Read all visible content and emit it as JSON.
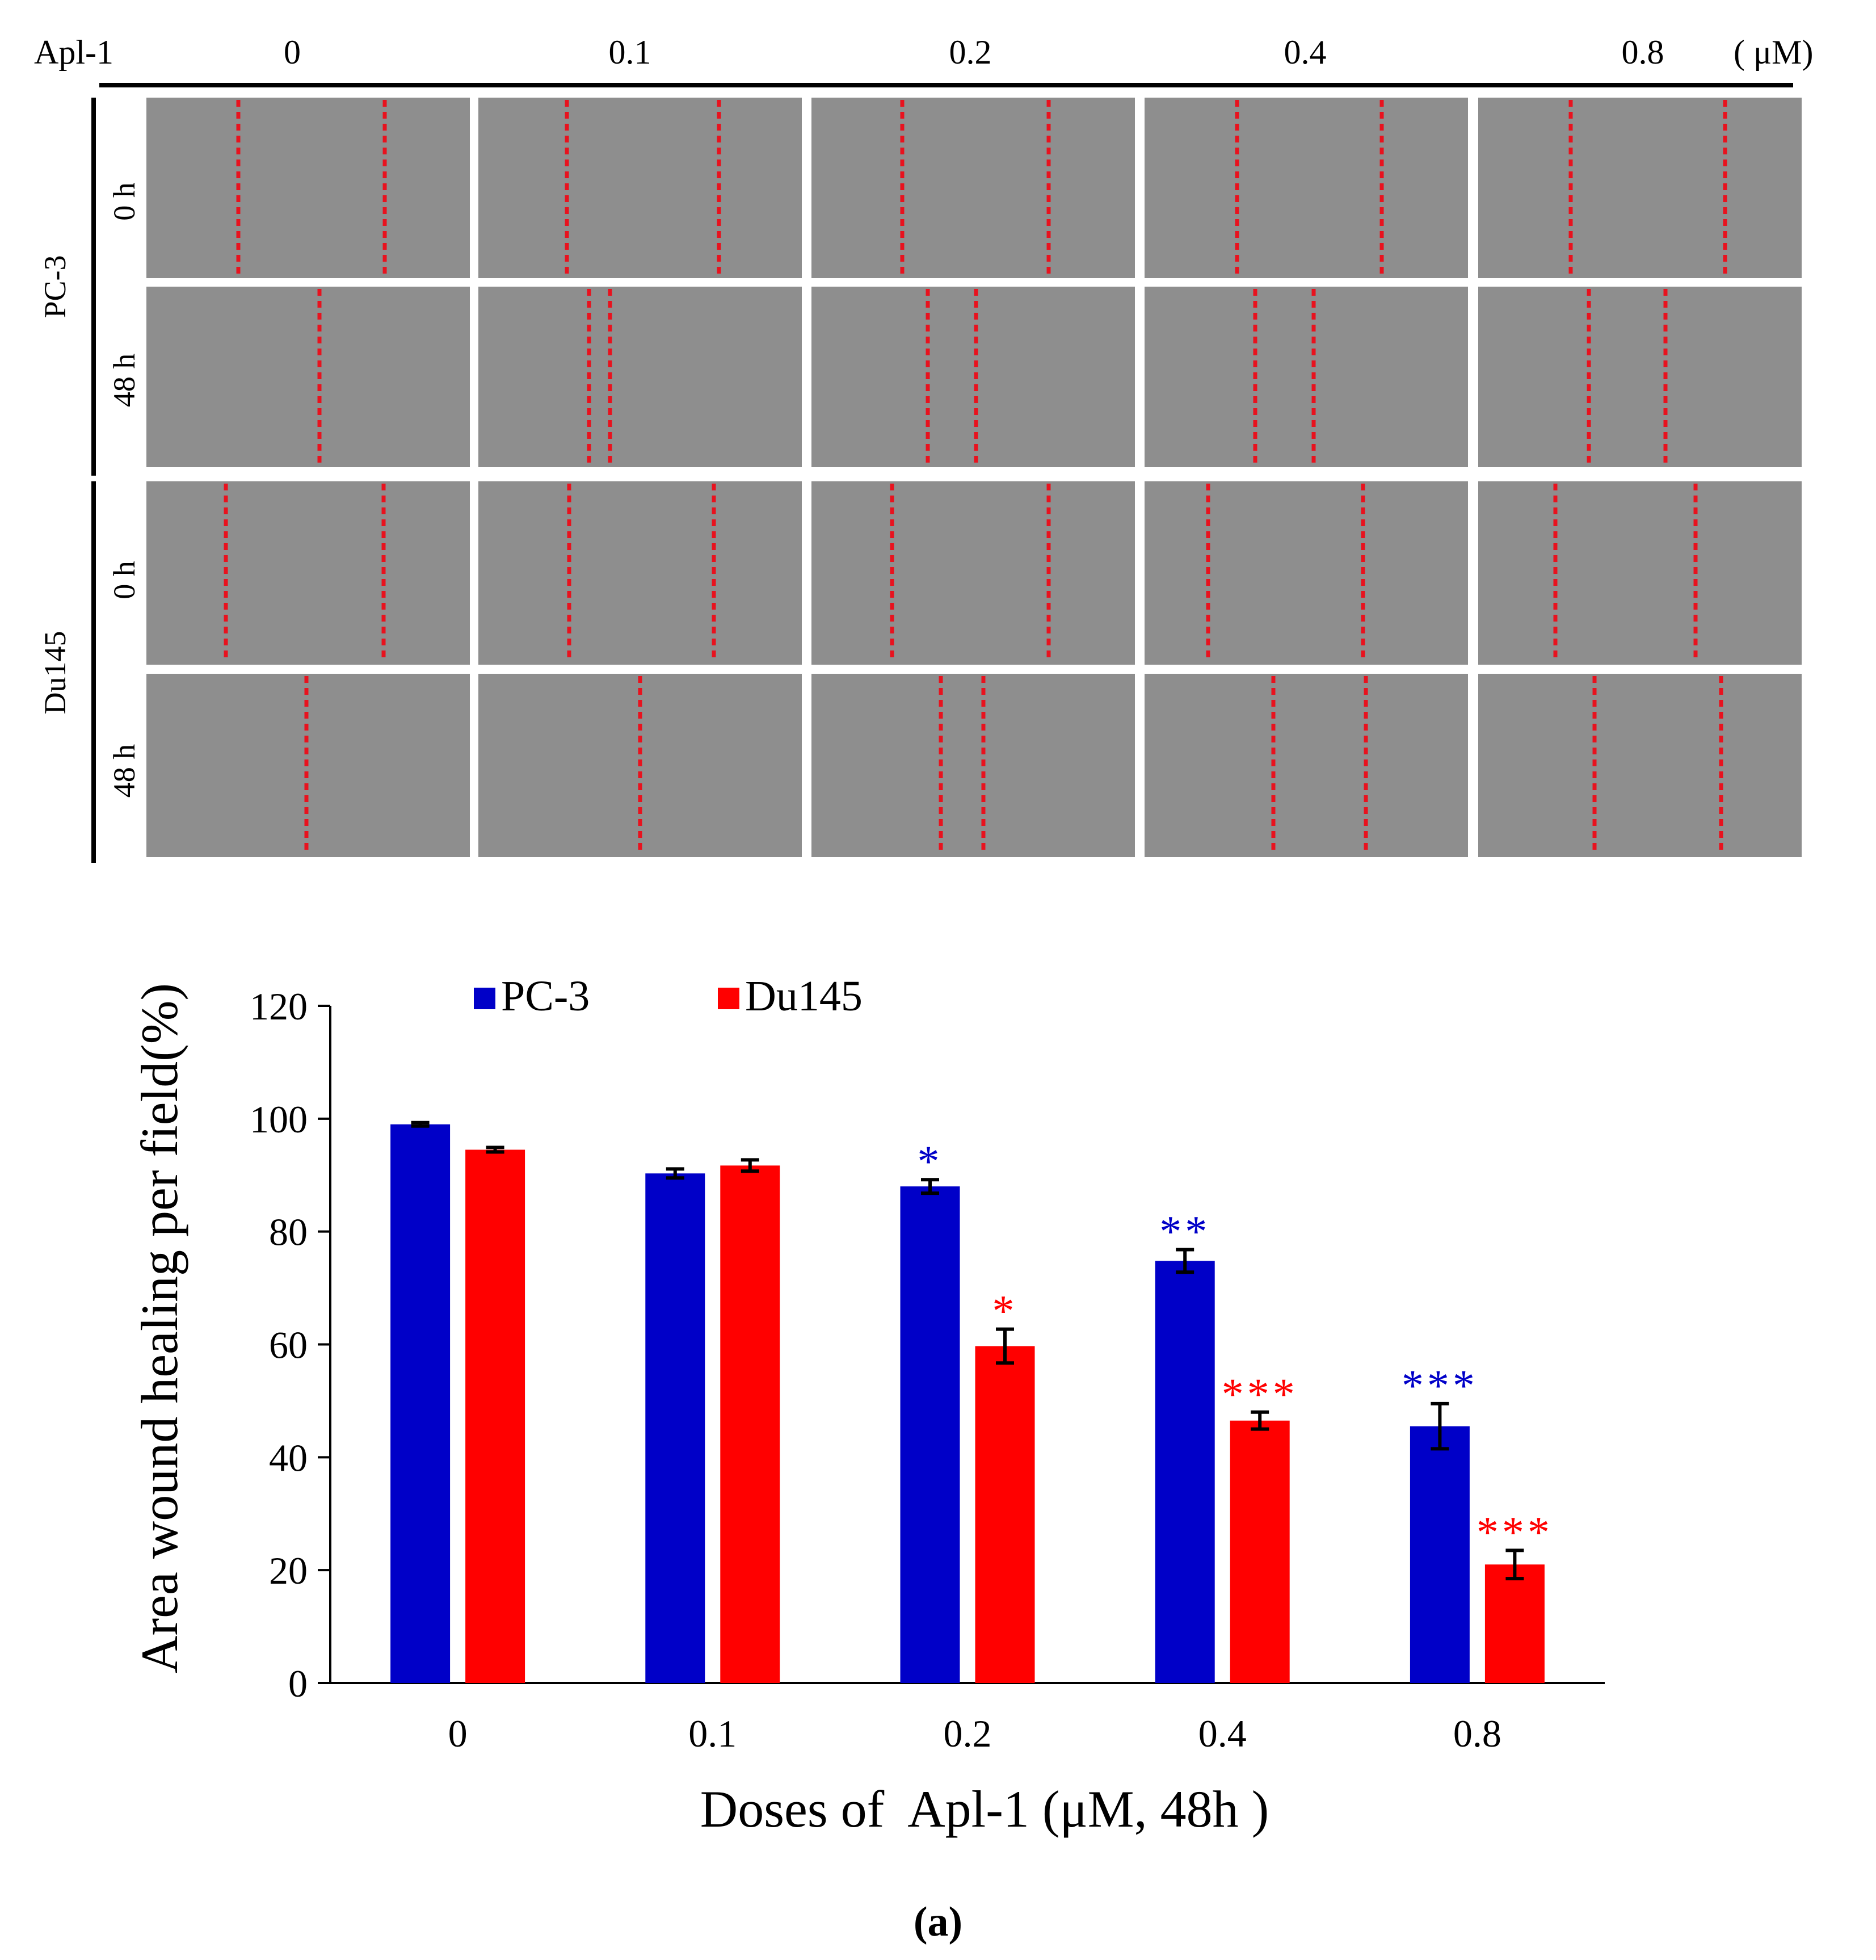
{
  "figure": {
    "panel_label": "(a)",
    "scratch_assay": {
      "treatment_label": "Apl-1",
      "unit": "( μM)",
      "doses": [
        "0",
        "0.1",
        "0.2",
        "0.4",
        "0.8"
      ],
      "cell_lines": [
        {
          "name": "PC-3",
          "timepoints": [
            "0 h",
            "48 h"
          ]
        },
        {
          "name": "Du145",
          "timepoints": [
            "0 h",
            "48 h"
          ]
        }
      ],
      "colors": {
        "wound_edge": "#e8121e",
        "micrograph": "#8e8e8e"
      }
    }
  },
  "chart_data": {
    "type": "bar",
    "title": "",
    "xlabel": "Doses of  Apl-1 (μM, 48h )",
    "ylabel": "Area wound healing per field(%)",
    "ylim": [
      0,
      120
    ],
    "yticks": [
      "0",
      "20",
      "40",
      "60",
      "80",
      "100",
      "120"
    ],
    "categories": [
      "0",
      "0.1",
      "0.2",
      "0.4",
      "0.8"
    ],
    "legend_position": "top",
    "series": [
      {
        "name": "PC-3",
        "color": "#0000c8",
        "values": [
          99,
          90.3,
          88,
          74.8,
          45.5
        ],
        "errors": [
          0.3,
          0.8,
          1.2,
          2,
          4
        ],
        "significance": [
          "",
          "",
          "*",
          "**",
          "***"
        ]
      },
      {
        "name": "Du145",
        "color": "#ff0000",
        "values": [
          94.5,
          91.7,
          59.7,
          46.5,
          21
        ],
        "errors": [
          0.4,
          1,
          3,
          1.5,
          2.5
        ],
        "significance": [
          "",
          "",
          "*",
          "***",
          "***"
        ]
      }
    ]
  }
}
